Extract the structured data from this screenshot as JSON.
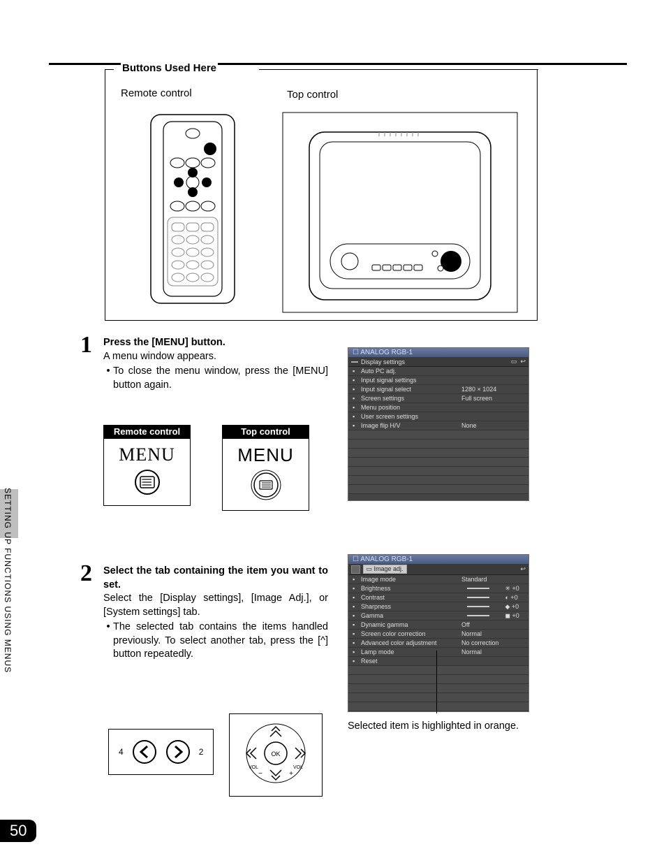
{
  "sideText": "SETTING UP FUNCTIONS USING MENUS",
  "pageNumber": "50",
  "buttonsUsedHere": {
    "legend": "Buttons Used Here",
    "remoteLabel": "Remote control",
    "topLabel": "Top control"
  },
  "step1": {
    "number": "1",
    "title": "Press the [MENU] button",
    "sub": "A menu window appears.",
    "bullet": "To close the menu window, press the [MENU] button again.",
    "remoteBoxLabel": "Remote control",
    "topBoxLabel": "Top control",
    "menuWord": "MENU"
  },
  "step2": {
    "number": "2",
    "title": "Select the tab containing the item you want to set.",
    "body": "Select the [Display settings], [Image Adj.], or [System settings] tab.",
    "bullet": "The selected tab contains the items handled previously. To select another tab, press the [^] button repeatedly.",
    "leftNav": "4",
    "rightNav": "2"
  },
  "menuWindow1": {
    "title": "ANALOG RGB-1",
    "tab": "Display settings",
    "rows": [
      {
        "label": "Auto PC adj.",
        "value": ""
      },
      {
        "label": "Input signal settings",
        "value": ""
      },
      {
        "label": "Input signal select",
        "value": "1280 × 1024"
      },
      {
        "label": "Screen settings",
        "value": "Full screen"
      },
      {
        "label": "Menu position",
        "value": ""
      },
      {
        "label": "User screen settings",
        "value": ""
      },
      {
        "label": "Image flip H/V",
        "value": "None"
      }
    ]
  },
  "menuWindow2": {
    "title": "ANALOG RGB-1",
    "tab": "Image adj.",
    "rows": [
      {
        "label": "Image mode",
        "value": "Standard",
        "slider": false
      },
      {
        "label": "Brightness",
        "value": "✳ +0",
        "slider": true
      },
      {
        "label": "Contrast",
        "value": "◐ +0",
        "slider": true
      },
      {
        "label": "Sharpness",
        "value": "◆ +0",
        "slider": true
      },
      {
        "label": "Gamma",
        "value": "◼ +0",
        "slider": true
      },
      {
        "label": "Dynamic gamma",
        "value": "Off",
        "slider": false
      },
      {
        "label": "Screen color correction",
        "value": "Normal",
        "slider": false
      },
      {
        "label": "Advanced color adjustment",
        "value": "No correction",
        "slider": false
      },
      {
        "label": "Lamp mode",
        "value": "Normal",
        "slider": false
      },
      {
        "label": "Reset",
        "value": "",
        "slider": false
      }
    ]
  },
  "caption": "Selected item is highlighted in orange.",
  "colors": {
    "menuBg": "#444444",
    "menuTitleGradTop": "#6a7aa0",
    "menuTitleGradBottom": "#4a5a80",
    "menuText": "#dddddd",
    "sideTab": "#bfbfbf"
  }
}
